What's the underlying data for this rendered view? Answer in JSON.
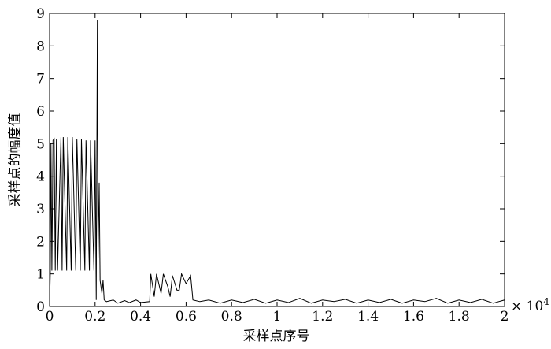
{
  "chart_data": {
    "type": "line",
    "xlabel": "采样点序号",
    "ylabel": "采样点的幅度值",
    "x_multiplier": {
      "base": "× 10",
      "exponent": "4"
    },
    "xlim": [
      0,
      2
    ],
    "ylim": [
      0,
      9
    ],
    "xticks": [
      0,
      0.2,
      0.4,
      0.6,
      0.8,
      1,
      1.2,
      1.4,
      1.6,
      1.8,
      2
    ],
    "yticks": [
      0,
      1,
      2,
      3,
      4,
      5,
      6,
      7,
      8,
      9
    ],
    "grid": false,
    "series": [
      {
        "color": "#000000",
        "x": [
          0,
          0.003,
          0.006,
          0.01,
          0.015,
          0.02,
          0.025,
          0.03,
          0.035,
          0.05,
          0.055,
          0.06,
          0.075,
          0.08,
          0.095,
          0.1,
          0.115,
          0.12,
          0.135,
          0.14,
          0.155,
          0.16,
          0.175,
          0.18,
          0.195,
          0.2,
          0.205,
          0.21,
          0.213,
          0.218,
          0.222,
          0.23,
          0.235,
          0.24,
          0.25,
          0.28,
          0.3,
          0.33,
          0.35,
          0.38,
          0.4,
          0.44,
          0.445,
          0.46,
          0.47,
          0.49,
          0.5,
          0.52,
          0.53,
          0.54,
          0.56,
          0.57,
          0.58,
          0.6,
          0.62,
          0.63,
          0.66,
          0.7,
          0.75,
          0.8,
          0.85,
          0.9,
          0.95,
          1,
          1.05,
          1.1,
          1.15,
          1.2,
          1.25,
          1.3,
          1.35,
          1.4,
          1.45,
          1.5,
          1.55,
          1.6,
          1.65,
          1.7,
          1.75,
          1.8,
          1.85,
          1.9,
          1.95,
          2
        ],
        "values": [
          0.1,
          1.0,
          5.0,
          1.1,
          5.1,
          5.15,
          1.1,
          5.15,
          1.1,
          5.2,
          1.1,
          5.2,
          1.1,
          5.2,
          1.1,
          5.2,
          1.1,
          5.15,
          1.1,
          5.15,
          1.1,
          5.1,
          1.1,
          5.1,
          1.1,
          5.1,
          0.2,
          8.8,
          1.5,
          3.8,
          0.8,
          0.4,
          0.8,
          0.2,
          0.15,
          0.2,
          0.1,
          0.18,
          0.12,
          0.2,
          0.12,
          0.15,
          1.0,
          0.3,
          1.0,
          0.4,
          1.0,
          0.6,
          0.3,
          0.95,
          0.5,
          0.5,
          1.0,
          0.7,
          0.95,
          0.2,
          0.15,
          0.2,
          0.1,
          0.2,
          0.12,
          0.22,
          0.1,
          0.2,
          0.12,
          0.25,
          0.1,
          0.2,
          0.15,
          0.22,
          0.1,
          0.2,
          0.12,
          0.22,
          0.1,
          0.2,
          0.15,
          0.25,
          0.1,
          0.2,
          0.12,
          0.22,
          0.1,
          0.2
        ]
      }
    ]
  }
}
